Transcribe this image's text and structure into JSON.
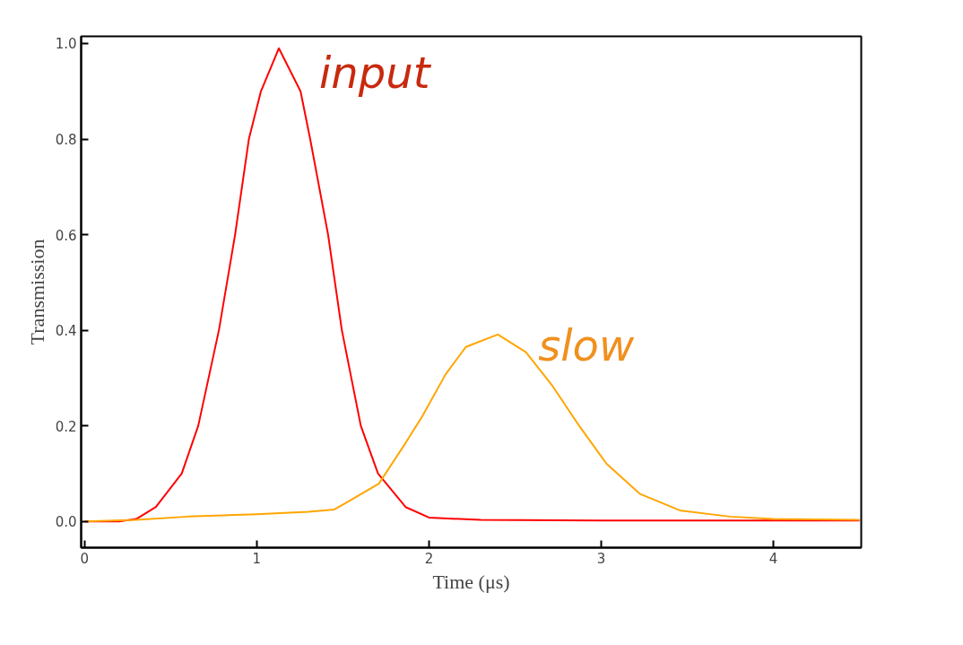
{
  "chart_data": {
    "type": "line",
    "xlabel": "Time (μs)",
    "ylabel": "Transmission",
    "xlim": [
      -0.02,
      4.51
    ],
    "ylim": [
      -0.055,
      1.015
    ],
    "xticks": [
      0,
      1,
      2,
      3,
      4
    ],
    "yticks": [
      {
        "value": 0,
        "label": "0.0"
      },
      0.2,
      0.4,
      0.6,
      0.8,
      {
        "value": 1,
        "label": "1.0"
      }
    ],
    "grid": false,
    "legend": false,
    "marker": "none",
    "line_style": "solid",
    "series": [
      {
        "name": "input",
        "color": "#ff0000",
        "x": [
          0,
          0.2,
          0.3,
          0.414,
          0.564,
          0.66,
          0.78,
          0.874,
          0.954,
          1.024,
          1.128,
          1.254,
          1.31,
          1.414,
          1.494,
          1.604,
          1.704,
          1.864,
          2.0,
          2.3,
          3.0,
          4.0,
          4.5
        ],
        "values": [
          0,
          0,
          0.005,
          0.03,
          0.1,
          0.2,
          0.4,
          0.6,
          0.8,
          0.9,
          0.99,
          0.9,
          0.8,
          0.6,
          0.4,
          0.2,
          0.1,
          0.03,
          0.008,
          0.003,
          0.002,
          0.002,
          0.002
        ]
      },
      {
        "name": "slow",
        "color": "#ffa500",
        "x": [
          0,
          0.3,
          0.6,
          1.0,
          1.3,
          1.45,
          1.515,
          1.709,
          1.864,
          1.961,
          2.097,
          2.214,
          2.4,
          2.563,
          2.718,
          2.874,
          3.03,
          3.223,
          3.456,
          3.748,
          4.0,
          4.5
        ],
        "values": [
          0,
          0.003,
          0.01,
          0.015,
          0.02,
          0.025,
          0.038,
          0.079,
          0.164,
          0.22,
          0.308,
          0.365,
          0.391,
          0.354,
          0.283,
          0.199,
          0.121,
          0.058,
          0.023,
          0.01,
          0.005,
          0.003
        ]
      }
    ]
  }
}
